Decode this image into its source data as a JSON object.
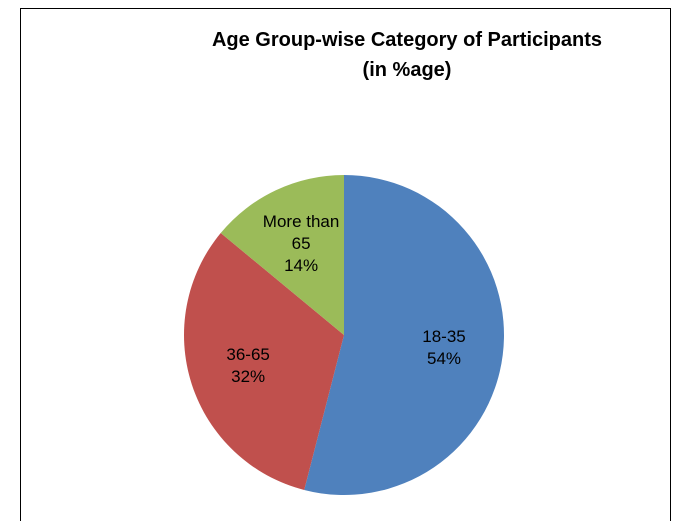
{
  "chart_data": {
    "type": "pie",
    "title": "Age Group-wise Category of Participants",
    "subtitle": "(in %age)",
    "categories": [
      "18-35",
      "36-65",
      "More than 65"
    ],
    "values": [
      54,
      32,
      14
    ],
    "value_labels": [
      "54%",
      "32%",
      "14%"
    ],
    "colors": [
      "#4f81bd",
      "#c0504d",
      "#9bbb59"
    ]
  }
}
